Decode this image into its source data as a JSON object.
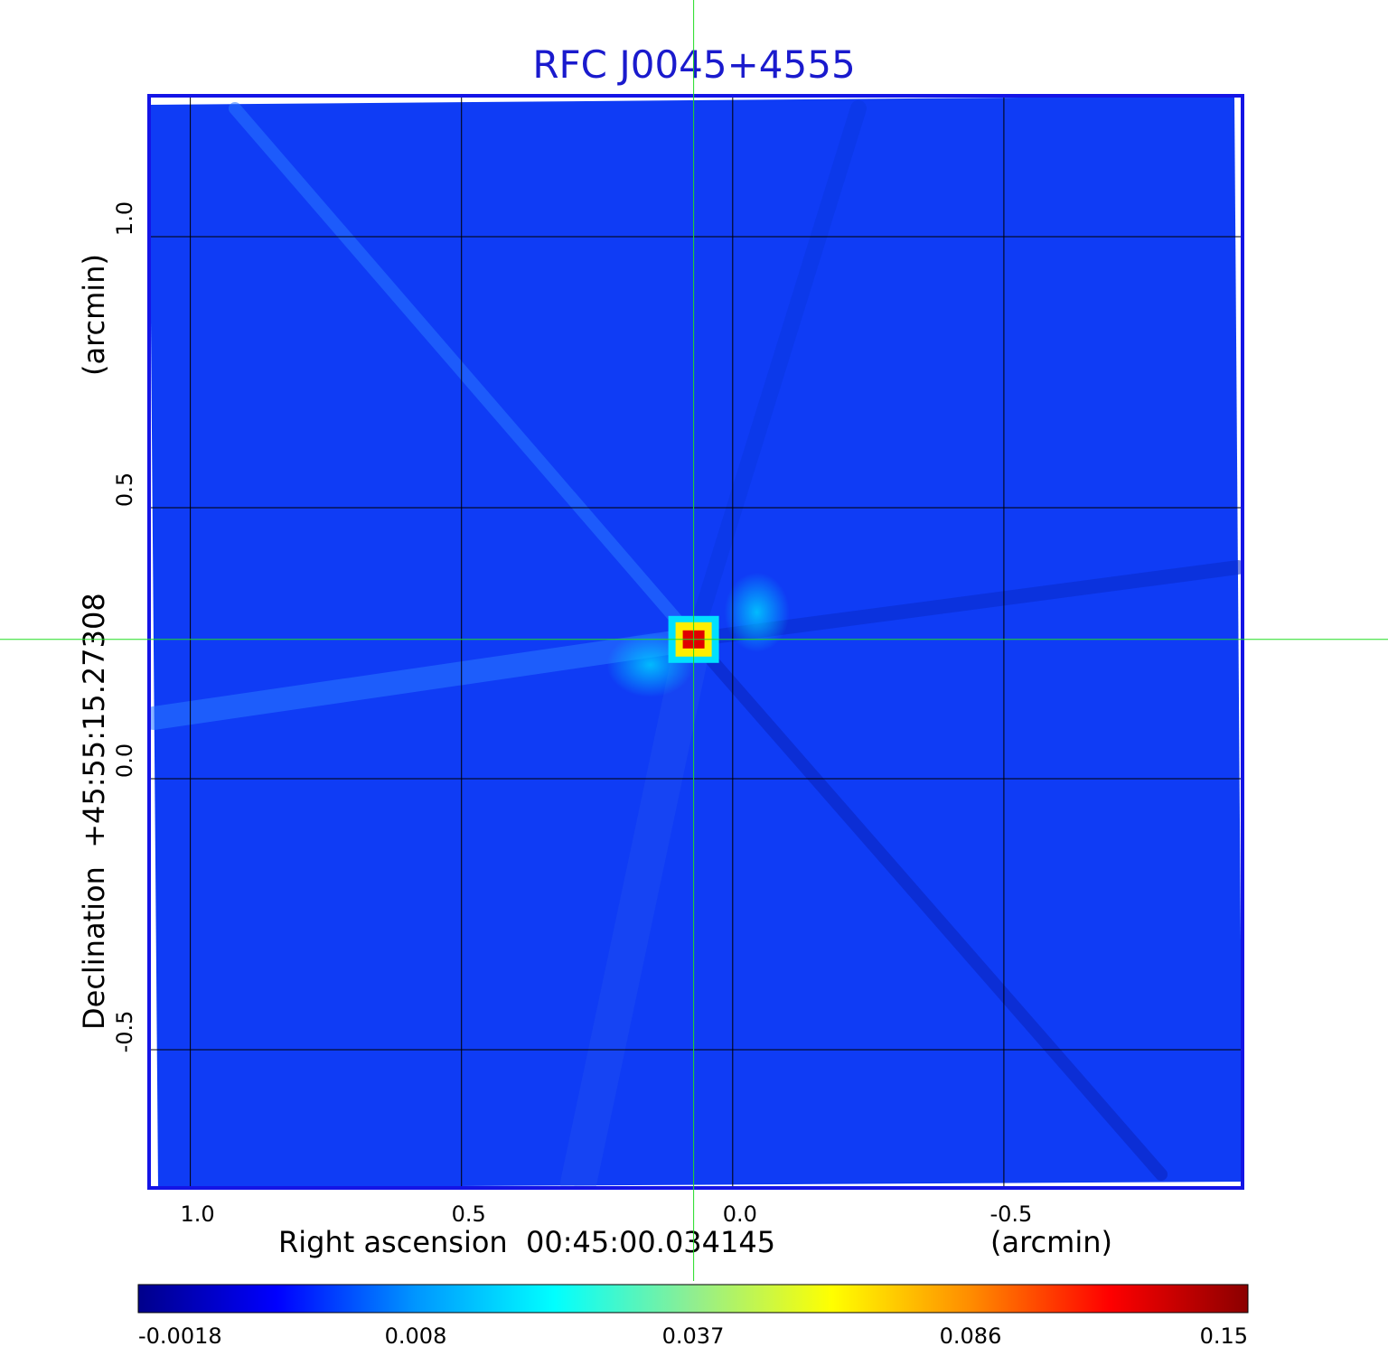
{
  "chart_data": {
    "type": "heatmap",
    "title": "RFC J0045+4555",
    "xlabel": "Right ascension  00:45:00.034145",
    "xunit": "(arcmin)",
    "ylabel": "Declination  +45:55:15.27308",
    "yunit": "(arcmin)",
    "x_ticks": [
      1.0,
      0.5,
      0.0,
      -0.5
    ],
    "x_tick_labels": [
      "1.0",
      "0.5",
      "0.0",
      "-0.5"
    ],
    "y_ticks": [
      1.0,
      0.5,
      0.0,
      -0.5
    ],
    "y_tick_labels": [
      "1.0",
      "0.5",
      "0.0",
      "-0.5"
    ],
    "xlim": [
      1.076,
      -0.94
    ],
    "ylim": [
      -0.755,
      1.26
    ],
    "grid": true,
    "crosshair": {
      "x": 0.072,
      "y": 0.257
    },
    "peak": {
      "x": 0.072,
      "y": 0.257,
      "value": 0.15
    },
    "colorbar": {
      "tick_values": [
        -0.0018,
        0.008,
        0.037,
        0.086,
        0.15
      ],
      "tick_labels": [
        "-0.0018",
        "0.008",
        "0.037",
        "0.086",
        "0.15"
      ],
      "stops": [
        "#00008b",
        "#0000ff",
        "#0096ff",
        "#00ffff",
        "#90ee90",
        "#ffff00",
        "#ff8c00",
        "#ff0000",
        "#8b0000"
      ]
    },
    "colors": {
      "title": "#1a1acd",
      "frame": "#1414e6",
      "background_map": "#0f3cf5",
      "crosshair": "#22dd22",
      "grid": "#000000"
    }
  }
}
